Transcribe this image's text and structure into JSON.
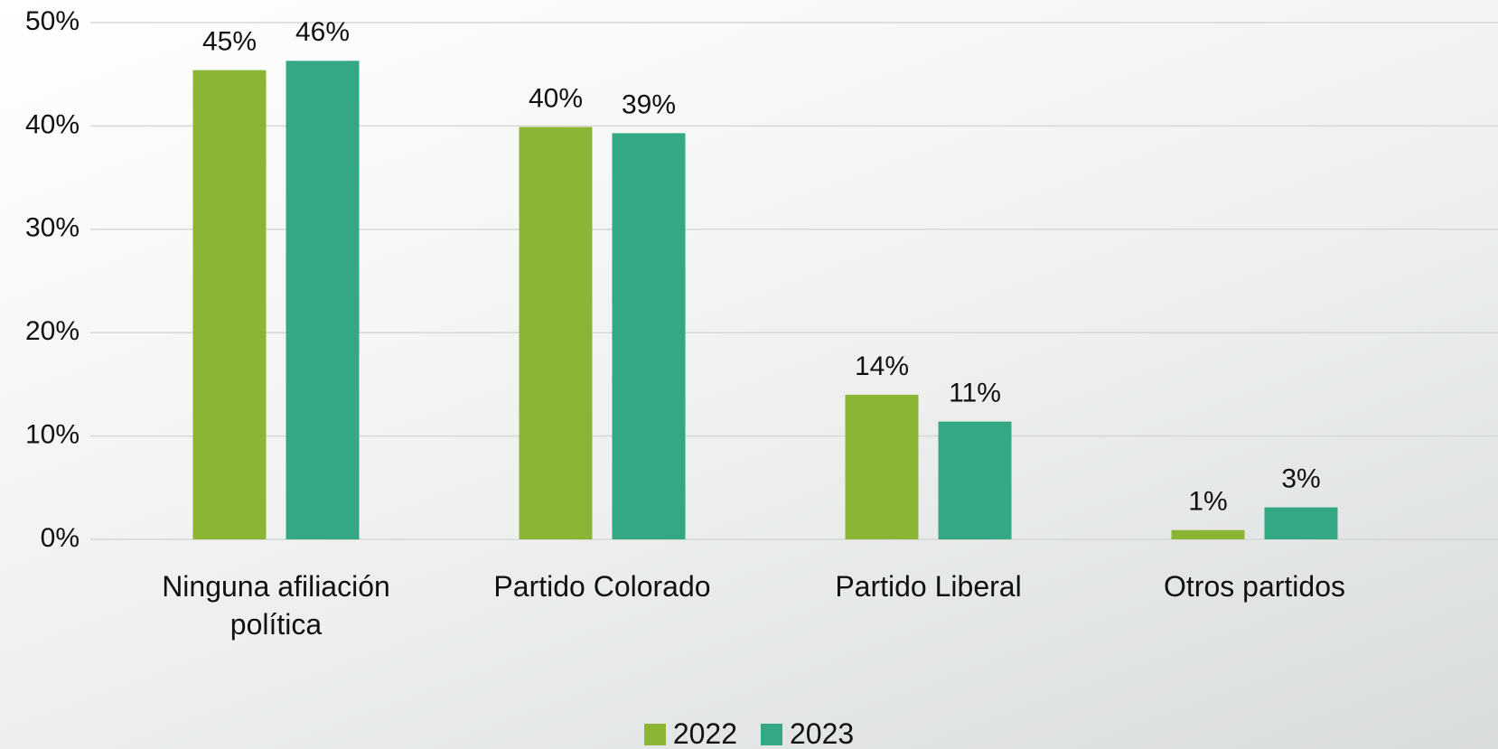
{
  "chart_data": {
    "type": "bar",
    "categories": [
      "Ninguna afiliación política",
      "Partido Colorado",
      "Partido Liberal",
      "Otros partidos"
    ],
    "series": [
      {
        "name": "2022",
        "color": "#8cb435",
        "values": [
          45.4,
          39.9,
          14.0,
          0.9
        ],
        "value_labels": [
          "45%",
          "40%",
          "14%",
          "1%"
        ]
      },
      {
        "name": "2023",
        "color": "#34a785",
        "values": [
          46.3,
          39.3,
          11.4,
          3.1
        ],
        "value_labels": [
          "46%",
          "39%",
          "11%",
          "3%"
        ]
      }
    ],
    "ylim": [
      0,
      50
    ],
    "yticks": [
      {
        "value": 0,
        "label": "0%"
      },
      {
        "value": 10,
        "label": "10%"
      },
      {
        "value": 20,
        "label": "20%"
      },
      {
        "value": 30,
        "label": "30%"
      },
      {
        "value": 40,
        "label": "40%"
      },
      {
        "value": 50,
        "label": "50%"
      }
    ],
    "grid": true,
    "legend": "bottom"
  }
}
